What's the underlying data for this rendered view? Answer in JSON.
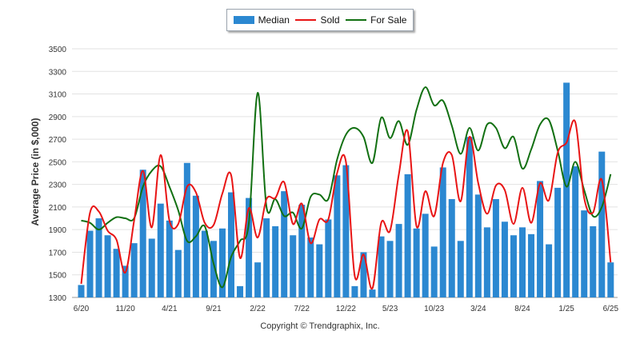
{
  "legend": {
    "median": "Median",
    "sold": "Sold",
    "for_sale": "For Sale"
  },
  "copyright": "Copyright © Trendgraphix, Inc.",
  "colors": {
    "median": "#2b88d1",
    "sold": "#e81414",
    "for_sale": "#127012",
    "grid": "#e2e2e2",
    "axis_text": "#333333"
  },
  "chart_data": {
    "type": "bar",
    "ylabel": "Average Price (in $,000)",
    "ylim": [
      1300,
      3500
    ],
    "yticks": [
      1300,
      1500,
      1700,
      1900,
      2100,
      2300,
      2500,
      2700,
      2900,
      3100,
      3300,
      3500
    ],
    "grid": true,
    "legend_position": "top-center",
    "x_tick_labels": [
      {
        "index": 0,
        "label": "6/20"
      },
      {
        "index": 5,
        "label": "11/20"
      },
      {
        "index": 10,
        "label": "4/21"
      },
      {
        "index": 15,
        "label": "9/21"
      },
      {
        "index": 20,
        "label": "2/22"
      },
      {
        "index": 25,
        "label": "7/22"
      },
      {
        "index": 30,
        "label": "12/22"
      },
      {
        "index": 35,
        "label": "5/23"
      },
      {
        "index": 40,
        "label": "10/23"
      },
      {
        "index": 45,
        "label": "3/24"
      },
      {
        "index": 50,
        "label": "8/24"
      },
      {
        "index": 55,
        "label": "1/25"
      },
      {
        "index": 60,
        "label": "6/25"
      }
    ],
    "categories": [
      "6/20",
      "7/20",
      "8/20",
      "9/20",
      "10/20",
      "11/20",
      "12/20",
      "1/21",
      "2/21",
      "3/21",
      "4/21",
      "5/21",
      "6/21",
      "7/21",
      "8/21",
      "9/21",
      "10/21",
      "11/21",
      "12/21",
      "1/22",
      "2/22",
      "3/22",
      "4/22",
      "5/22",
      "6/22",
      "7/22",
      "8/22",
      "9/22",
      "10/22",
      "11/22",
      "12/22",
      "1/23",
      "2/23",
      "3/23",
      "4/23",
      "5/23",
      "6/23",
      "7/23",
      "8/23",
      "9/23",
      "10/23",
      "11/23",
      "12/23",
      "1/24",
      "2/24",
      "3/24",
      "4/24",
      "5/24",
      "6/24",
      "7/24",
      "8/24",
      "9/24",
      "10/24",
      "11/24",
      "12/24",
      "1/25",
      "2/25",
      "3/25",
      "4/25",
      "5/25",
      "6/25"
    ],
    "series": [
      {
        "name": "Median",
        "type": "bar",
        "values": [
          1410,
          1890,
          2000,
          1850,
          1730,
          1580,
          1780,
          2430,
          1820,
          2130,
          1980,
          1720,
          2490,
          2200,
          1890,
          1800,
          1910,
          2230,
          1400,
          2180,
          1610,
          2000,
          1930,
          2240,
          1850,
          2120,
          1830,
          1770,
          1990,
          2380,
          2470,
          1400,
          1700,
          1370,
          1840,
          1800,
          1950,
          2390,
          1910,
          2040,
          1750,
          2450,
          2170,
          1800,
          2720,
          2210,
          1920,
          2170,
          1970,
          1850,
          1920,
          1860,
          2330,
          1770,
          2270,
          3200,
          2460,
          2070,
          1930,
          2590,
          1610
        ]
      },
      {
        "name": "Sold",
        "type": "line",
        "values": [
          1420,
          2050,
          2060,
          1890,
          1810,
          1520,
          1980,
          2420,
          1920,
          2560,
          1980,
          1950,
          2280,
          2230,
          1960,
          1940,
          2220,
          2380,
          1650,
          2090,
          1830,
          2170,
          2180,
          2320,
          1950,
          2130,
          1780,
          1990,
          1990,
          2400,
          2500,
          1490,
          1680,
          1380,
          1960,
          1890,
          2390,
          2770,
          1930,
          2240,
          2020,
          2490,
          2560,
          2150,
          2720,
          2310,
          2040,
          2290,
          2250,
          1950,
          2270,
          1960,
          2310,
          2160,
          2580,
          2670,
          2850,
          2180,
          2050,
          2340,
          1610
        ]
      },
      {
        "name": "For Sale",
        "type": "line",
        "values": [
          1980,
          1960,
          1900,
          1960,
          2010,
          2000,
          2000,
          2280,
          2420,
          2460,
          2280,
          2070,
          1800,
          1840,
          1930,
          1600,
          1390,
          1660,
          1800,
          1960,
          3110,
          2100,
          2170,
          2020,
          2050,
          1910,
          2190,
          2210,
          2170,
          2520,
          2740,
          2800,
          2720,
          2490,
          2890,
          2710,
          2860,
          2650,
          2960,
          3160,
          3000,
          3040,
          2820,
          2570,
          2800,
          2600,
          2830,
          2800,
          2620,
          2720,
          2440,
          2610,
          2830,
          2870,
          2600,
          2280,
          2500,
          2250,
          2020,
          2100,
          2390
        ]
      }
    ]
  }
}
